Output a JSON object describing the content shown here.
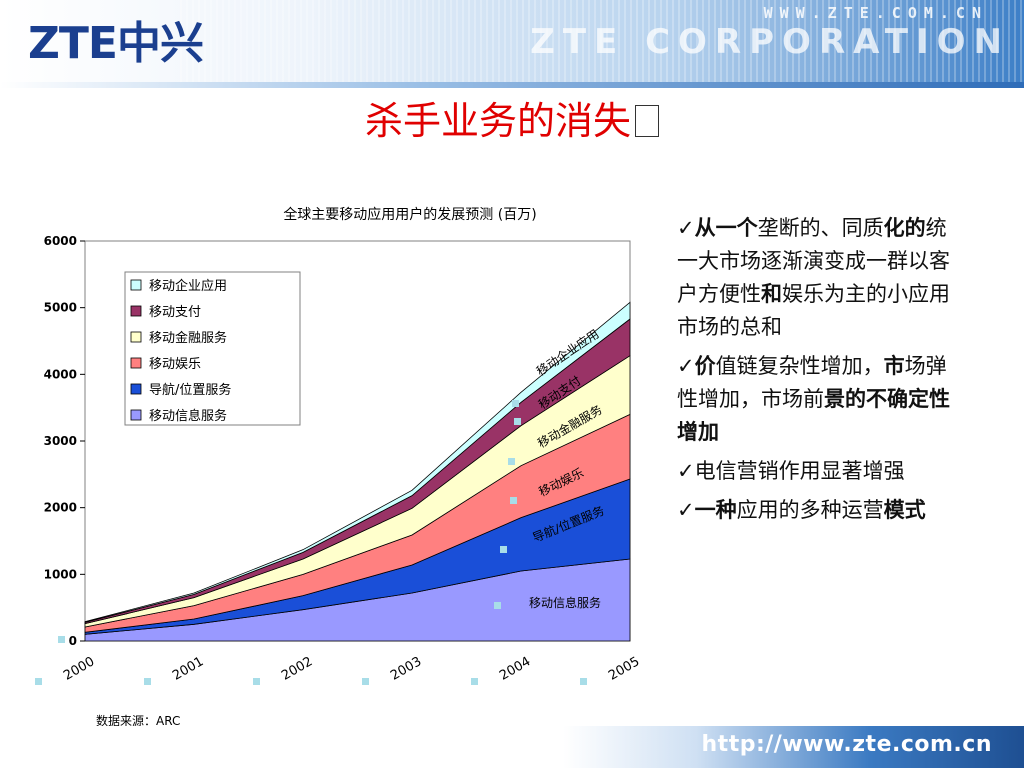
{
  "header": {
    "logo": "ZTE中兴",
    "url_top": "WWW.ZTE.COM.CN",
    "corp": "ZTE CORPORATION"
  },
  "slide": {
    "title": "杀手业务的消失",
    "source": "数据来源：ARC",
    "footer_url": "http://www.zte.com.cn"
  },
  "bullets": [
    {
      "bold": "从一个",
      "rest": "垄断的、同质",
      "bold2": "化的",
      "rest2": "统一大市场逐渐演变成一群以客户方便性",
      "bold3": "和",
      "rest3": "娱乐为主的小应用市场的总和"
    },
    {
      "bold": "价",
      "rest": "值链复杂性增加，",
      "bold2": "市",
      "rest2": "场弹性增加，市场前",
      "bold3": "景的不确定性增加",
      "rest3": ""
    },
    {
      "bold": "",
      "rest": "电信营销作用显著增强",
      "bold2": "",
      "rest2": "",
      "bold3": "",
      "rest3": ""
    },
    {
      "bold": "一种",
      "rest": "应用的多种运营",
      "bold2": "模式",
      "rest2": "",
      "bold3": "",
      "rest3": ""
    }
  ],
  "chart_data": {
    "type": "area",
    "stacked": true,
    "title": "全球主要移动应用用户的发展预测 (百万)",
    "categories": [
      "2000",
      "2001",
      "2002",
      "2003",
      "2004",
      "2005"
    ],
    "ylim": [
      0,
      6000
    ],
    "yticks": [
      "0",
      "1000",
      "2000",
      "3000",
      "4000",
      "5000",
      "6000"
    ],
    "legend_position": "top-left",
    "series": [
      {
        "name": "移动信息服务",
        "values": [
          100,
          250,
          470,
          720,
          1050,
          1230
        ],
        "color": "#9999ff"
      },
      {
        "name": "导航/位置服务",
        "values": [
          30,
          80,
          210,
          420,
          800,
          1200
        ],
        "color": "#1a4fd8"
      },
      {
        "name": "移动娱乐",
        "values": [
          80,
          200,
          320,
          450,
          780,
          970
        ],
        "color": "#ff8080"
      },
      {
        "name": "移动金融服务",
        "values": [
          50,
          120,
          230,
          400,
          600,
          880
        ],
        "color": "#ffffcc"
      },
      {
        "name": "移动支付",
        "values": [
          20,
          50,
          100,
          190,
          350,
          550
        ],
        "color": "#993366"
      },
      {
        "name": "移动企业应用",
        "values": [
          10,
          20,
          40,
          80,
          150,
          250
        ],
        "color": "#ccffff"
      }
    ],
    "area_labels": [
      "移动企业应用",
      "移动支付",
      "移动金融服务",
      "移动娱乐",
      "导航/位置服务",
      "移动信息服务"
    ]
  }
}
